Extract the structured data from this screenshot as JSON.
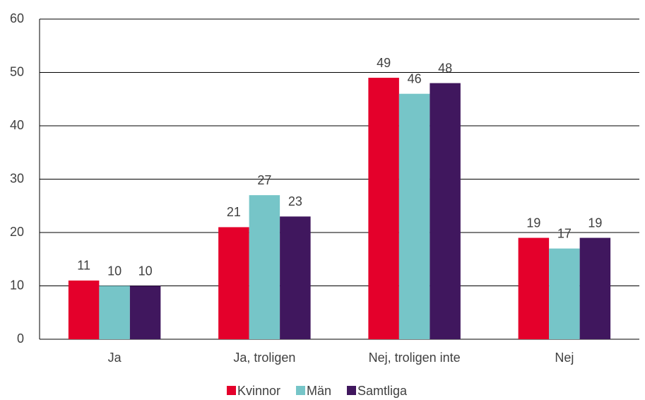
{
  "chart_data": {
    "type": "bar",
    "categories": [
      "Ja",
      "Ja, troligen",
      "Nej, troligen inte",
      "Nej"
    ],
    "series": [
      {
        "name": "Kvinnor",
        "color": "#e4002b",
        "values": [
          11,
          21,
          49,
          19
        ]
      },
      {
        "name": "Män",
        "color": "#76c5c8",
        "values": [
          10,
          27,
          46,
          17
        ]
      },
      {
        "name": "Samtliga",
        "color": "#40175e",
        "values": [
          10,
          23,
          48,
          19
        ]
      }
    ],
    "ylim": [
      0,
      60
    ],
    "yticks": [
      0,
      10,
      20,
      30,
      40,
      50,
      60
    ],
    "grid": true,
    "legend": "bottom"
  }
}
